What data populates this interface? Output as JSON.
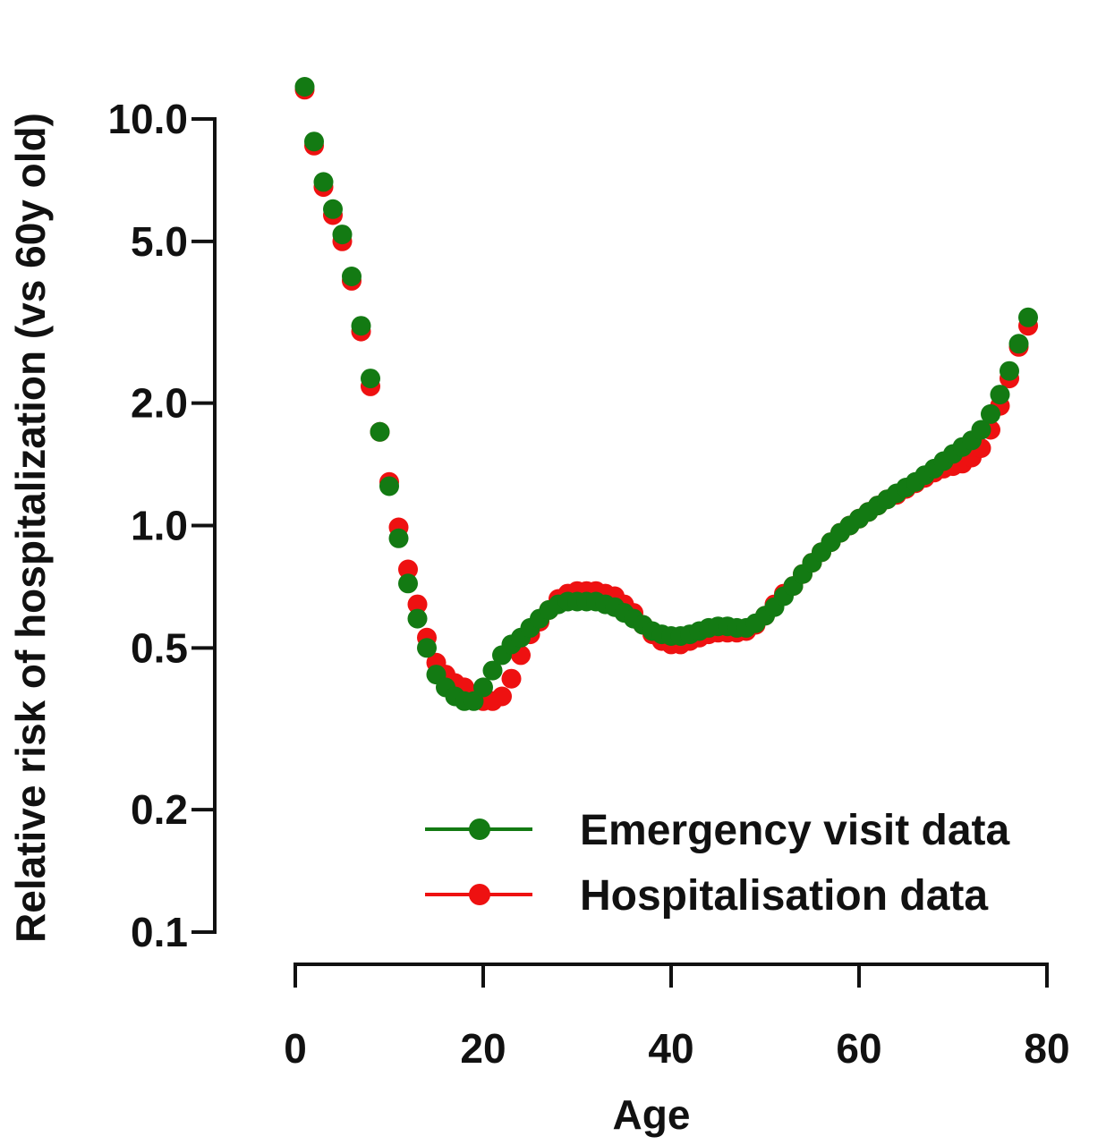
{
  "chart_data": {
    "type": "scatter",
    "xlabel": "Age",
    "ylabel": "Relative risk of hospitalization (vs 60y old)",
    "xlim": [
      0,
      80
    ],
    "ylim": [
      0.1,
      10.0
    ],
    "yscale": "log",
    "x_ticks": [
      {
        "value": 0,
        "label": "0"
      },
      {
        "value": 20,
        "label": "20"
      },
      {
        "value": 40,
        "label": "40"
      },
      {
        "value": 60,
        "label": "60"
      },
      {
        "value": 80,
        "label": "80"
      }
    ],
    "y_ticks": [
      {
        "value": 10.0,
        "label": "10.0"
      },
      {
        "value": 5.0,
        "label": "5.0"
      },
      {
        "value": 2.0,
        "label": "2.0"
      },
      {
        "value": 1.0,
        "label": "1.0"
      },
      {
        "value": 0.5,
        "label": "0.5"
      },
      {
        "value": 0.2,
        "label": "0.2"
      },
      {
        "value": 0.1,
        "label": "0.1"
      }
    ],
    "grid": false,
    "legend_position": "bottom-right",
    "series": [
      {
        "name": "Hospitalisation data",
        "color": "#ee1111",
        "x": [
          1,
          2,
          3,
          4,
          5,
          6,
          7,
          8,
          9,
          10,
          11,
          12,
          13,
          14,
          15,
          16,
          17,
          18,
          19,
          20,
          21,
          22,
          23,
          24,
          25,
          26,
          27,
          28,
          29,
          30,
          31,
          32,
          33,
          34,
          35,
          36,
          37,
          38,
          39,
          40,
          41,
          42,
          43,
          44,
          45,
          46,
          47,
          48,
          49,
          50,
          51,
          52,
          53,
          54,
          55,
          56,
          57,
          58,
          59,
          60,
          61,
          62,
          63,
          64,
          65,
          66,
          67,
          68,
          69,
          70,
          71,
          72,
          73,
          74,
          75,
          76,
          77,
          78
        ],
        "y": [
          11.8,
          8.6,
          6.8,
          5.8,
          5.0,
          4.0,
          3.0,
          2.2,
          1.7,
          1.28,
          0.99,
          0.78,
          0.64,
          0.53,
          0.46,
          0.43,
          0.41,
          0.4,
          0.38,
          0.37,
          0.37,
          0.38,
          0.42,
          0.48,
          0.54,
          0.58,
          0.62,
          0.66,
          0.68,
          0.69,
          0.69,
          0.69,
          0.68,
          0.67,
          0.64,
          0.61,
          0.57,
          0.54,
          0.52,
          0.51,
          0.51,
          0.52,
          0.53,
          0.54,
          0.545,
          0.545,
          0.545,
          0.55,
          0.57,
          0.6,
          0.64,
          0.68,
          0.71,
          0.76,
          0.81,
          0.86,
          0.91,
          0.96,
          1.0,
          1.04,
          1.08,
          1.12,
          1.16,
          1.19,
          1.23,
          1.27,
          1.31,
          1.35,
          1.38,
          1.4,
          1.42,
          1.47,
          1.55,
          1.72,
          1.97,
          2.3,
          2.75,
          3.1
        ]
      },
      {
        "name": "Emergency visit data",
        "color": "#137a13",
        "x": [
          1,
          2,
          3,
          4,
          5,
          6,
          7,
          8,
          9,
          10,
          11,
          12,
          13,
          14,
          15,
          16,
          17,
          18,
          19,
          20,
          21,
          22,
          23,
          24,
          25,
          26,
          27,
          28,
          29,
          30,
          31,
          32,
          33,
          34,
          35,
          36,
          37,
          38,
          39,
          40,
          41,
          42,
          43,
          44,
          45,
          46,
          47,
          48,
          49,
          50,
          51,
          52,
          53,
          54,
          55,
          56,
          57,
          58,
          59,
          60,
          61,
          62,
          63,
          64,
          65,
          66,
          67,
          68,
          69,
          70,
          71,
          72,
          73,
          74,
          75,
          76,
          77,
          78
        ],
        "y": [
          12.0,
          8.8,
          7.0,
          6.0,
          5.2,
          4.1,
          3.1,
          2.3,
          1.7,
          1.25,
          0.93,
          0.72,
          0.59,
          0.5,
          0.43,
          0.4,
          0.38,
          0.37,
          0.37,
          0.4,
          0.44,
          0.48,
          0.51,
          0.53,
          0.56,
          0.59,
          0.62,
          0.64,
          0.65,
          0.65,
          0.65,
          0.65,
          0.64,
          0.63,
          0.61,
          0.59,
          0.57,
          0.55,
          0.54,
          0.535,
          0.535,
          0.54,
          0.55,
          0.56,
          0.565,
          0.565,
          0.56,
          0.56,
          0.575,
          0.6,
          0.63,
          0.67,
          0.71,
          0.76,
          0.81,
          0.86,
          0.91,
          0.96,
          1.0,
          1.04,
          1.08,
          1.12,
          1.16,
          1.2,
          1.24,
          1.28,
          1.33,
          1.38,
          1.44,
          1.5,
          1.56,
          1.62,
          1.72,
          1.88,
          2.1,
          2.4,
          2.8,
          3.25
        ]
      }
    ]
  }
}
